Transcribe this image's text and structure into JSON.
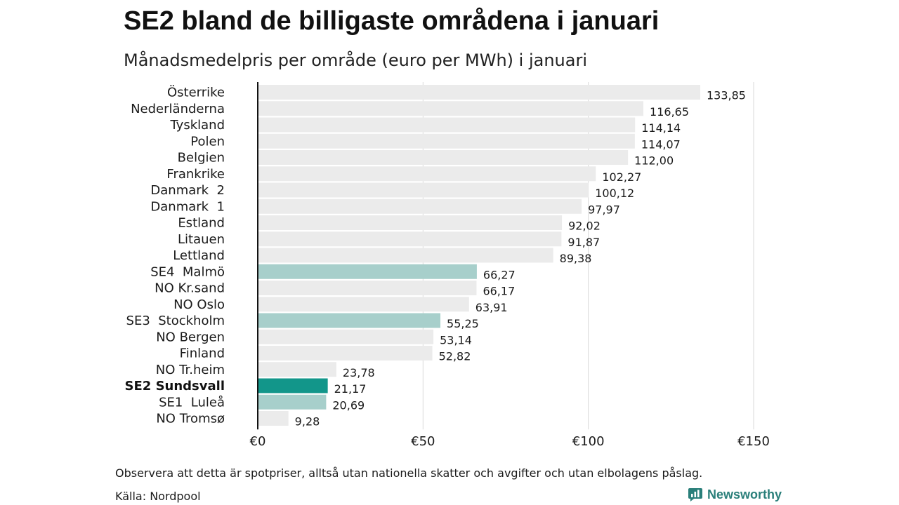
{
  "title": "SE2 bland de billigaste områdena i januari",
  "subtitle": "Månadsmedelpris per område (euro per MWh) i januari",
  "footnote": "Observera att detta är spotpriser, alltså utan nationella skatter och avgifter och utan elbolagens påslag.",
  "source": "Källa: Nordpool",
  "brand": "Newsworthy",
  "colors": {
    "default_bar": "#ebebeb",
    "se_bar": "#a7cfcb",
    "highlight_bar": "#12968a",
    "grid": "#d9d9d9",
    "axis": "#111111",
    "brand": "#2a7f7a"
  },
  "chart_data": {
    "type": "bar",
    "orientation": "horizontal",
    "categories": [
      "Österrike",
      "Nederländerna",
      "Tyskland",
      "Polen",
      "Belgien",
      "Frankrike",
      "Danmark  2",
      "Danmark  1",
      "Estland",
      "Litauen",
      "Lettland",
      "SE4  Malmö",
      "NO Kr.sand",
      "NO Oslo",
      "SE3  Stockholm",
      "NO Bergen",
      "Finland",
      "NO Tr.heim",
      "SE2 Sundsvall",
      "SE1  Luleå",
      "NO Tromsø"
    ],
    "values": [
      133.85,
      116.65,
      114.14,
      114.07,
      112.0,
      102.27,
      100.12,
      97.97,
      92.02,
      91.87,
      89.38,
      66.27,
      66.17,
      63.91,
      55.25,
      53.14,
      52.82,
      23.78,
      21.17,
      20.69,
      9.28
    ],
    "value_labels": [
      "133,85",
      "116,65",
      "114,14",
      "114,07",
      "112,00",
      "102,27",
      "100,12",
      "97,97",
      "92,02",
      "91,87",
      "89,38",
      "66,27",
      "66,17",
      "63,91",
      "55,25",
      "53,14",
      "52,82",
      "23,78",
      "21,17",
      "20,69",
      "9,28"
    ],
    "bar_group": [
      "other",
      "other",
      "other",
      "other",
      "other",
      "other",
      "other",
      "other",
      "other",
      "other",
      "other",
      "se",
      "other",
      "other",
      "se",
      "other",
      "other",
      "other",
      "highlight",
      "se",
      "other"
    ],
    "x_ticks": [
      0,
      50,
      100,
      150
    ],
    "x_tick_labels": [
      "€0",
      "€50",
      "€100",
      "€150"
    ],
    "xlim": [
      0,
      150
    ],
    "grid": true,
    "legend": "none"
  }
}
